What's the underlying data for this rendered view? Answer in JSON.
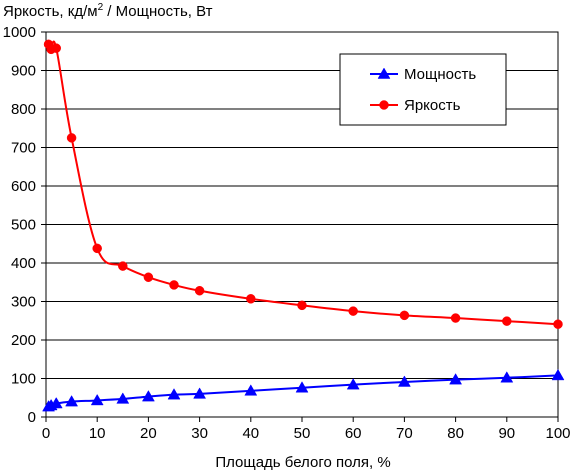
{
  "chart_data": {
    "type": "line",
    "title": "",
    "ylabel": "Яркость, кд/м² / Мощность, Вт",
    "ylabel_parts": {
      "lead": "Яркость, кд/м",
      "sup": "2",
      "tail": " / Мощность, Вт"
    },
    "xlabel": "Площадь белого поля, %",
    "xlim": [
      0,
      100
    ],
    "ylim": [
      0,
      1000
    ],
    "xticks": [
      0,
      10,
      20,
      30,
      40,
      50,
      60,
      70,
      80,
      90,
      100
    ],
    "yticks": [
      0,
      100,
      200,
      300,
      400,
      500,
      600,
      700,
      800,
      900,
      1000
    ],
    "grid": "horizontal",
    "legend_position": "top-right",
    "series": [
      {
        "name": "Мощность",
        "color": "#0000ff",
        "marker": "triangle",
        "x": [
          0.5,
          1,
          2,
          5,
          10,
          15,
          20,
          25,
          30,
          40,
          50,
          60,
          70,
          80,
          90,
          100
        ],
        "y": [
          27,
          30,
          35,
          40,
          43,
          47,
          53,
          58,
          60,
          68,
          76,
          84,
          91,
          97,
          102,
          108
        ]
      },
      {
        "name": "Яркость",
        "color": "#ff0000",
        "marker": "circle",
        "x": [
          0.5,
          1,
          2,
          5,
          10,
          15,
          20,
          25,
          30,
          40,
          50,
          60,
          70,
          80,
          90,
          100
        ],
        "y": [
          968,
          955,
          958,
          725,
          438,
          392,
          363,
          343,
          328,
          307,
          290,
          275,
          264,
          257,
          249,
          241
        ]
      }
    ]
  }
}
